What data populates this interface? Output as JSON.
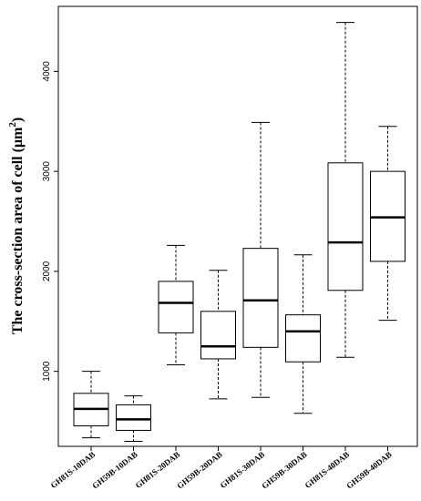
{
  "chart_data": {
    "type": "boxplot",
    "title": "",
    "xlabel": "",
    "ylabel": "The cross-section area of cell (μm",
    "ylabel_superscript": "2",
    "ylabel_close": ")",
    "ylim": [
      250,
      4650
    ],
    "yticks": [
      1000,
      2000,
      3000,
      4000
    ],
    "grid": false,
    "categories": [
      "GH81S-10DAB",
      "GH59B-10DAB",
      "GH81S-20DAB",
      "GH59B-20DAB",
      "GH81S-30DAB",
      "GH59B-30DAB",
      "GH81S-40DAB",
      "GH59B-40DAB"
    ],
    "boxes": [
      {
        "min": 335,
        "q1": 455,
        "median": 625,
        "q3": 780,
        "max": 1000
      },
      {
        "min": 300,
        "q1": 410,
        "median": 520,
        "q3": 665,
        "max": 755
      },
      {
        "min": 1065,
        "q1": 1385,
        "median": 1685,
        "q3": 1900,
        "max": 2260
      },
      {
        "min": 725,
        "q1": 1125,
        "median": 1250,
        "q3": 1600,
        "max": 2010
      },
      {
        "min": 740,
        "q1": 1240,
        "median": 1710,
        "q3": 2230,
        "max": 3490
      },
      {
        "min": 580,
        "q1": 1095,
        "median": 1400,
        "q3": 1565,
        "max": 2165
      },
      {
        "min": 1140,
        "q1": 1810,
        "median": 2290,
        "q3": 3085,
        "max": 4490
      },
      {
        "min": 1510,
        "q1": 2100,
        "median": 2540,
        "q3": 3000,
        "max": 3450
      }
    ]
  }
}
